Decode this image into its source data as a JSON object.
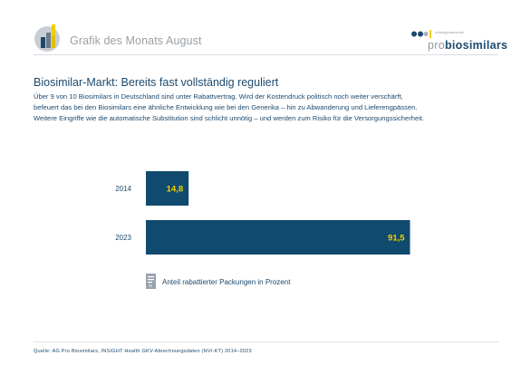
{
  "header": {
    "title": "Grafik des Monats August"
  },
  "brand": {
    "subtitle": "Arbeitsgemeinschaft",
    "name_prefix": "pro",
    "name_main": "biosimilars"
  },
  "headline": "Biosimilar-Markt: Bereits fast vollständig reguliert",
  "body": {
    "line1": "Über 9 von 10 Biosimilars in Deutschland sind unter Rabattvertrag. Wird der Kostendruck politisch noch weiter verschärft,",
    "line2": "befeuert das bei den Biosimilars eine ähnliche Entwicklung wie bei den Generika – hin zu Abwanderung und Lieferengpässen.",
    "line3": "Weitere Eingriffe wie die automatische Substitution sind schlicht unnötig – und werden zum Risiko für die Versorgungssicherheit."
  },
  "chart_data": {
    "type": "bar",
    "orientation": "horizontal",
    "categories": [
      "2014",
      "2023"
    ],
    "series": [
      {
        "name": "Anteil rabattierter Packungen in Prozent",
        "values": [
          14.8,
          91.5
        ],
        "labels": [
          "14,8",
          "91,5"
        ]
      }
    ],
    "xlim": [
      0,
      100
    ],
    "grid": false,
    "legend": "bottom-left",
    "bar_color": "#104a6e",
    "label_color": "#f2d000"
  },
  "footer": {
    "source": "Quelle:   AG Pro Biosimilars, INSIGHT Health GKV-Abrechnungsdaten (NVI-KT) 2014–2023"
  },
  "colors": {
    "primary": "#1c4a6e",
    "bar": "#104a6e",
    "value_label": "#f2d000",
    "muted": "#9aa0a6"
  }
}
